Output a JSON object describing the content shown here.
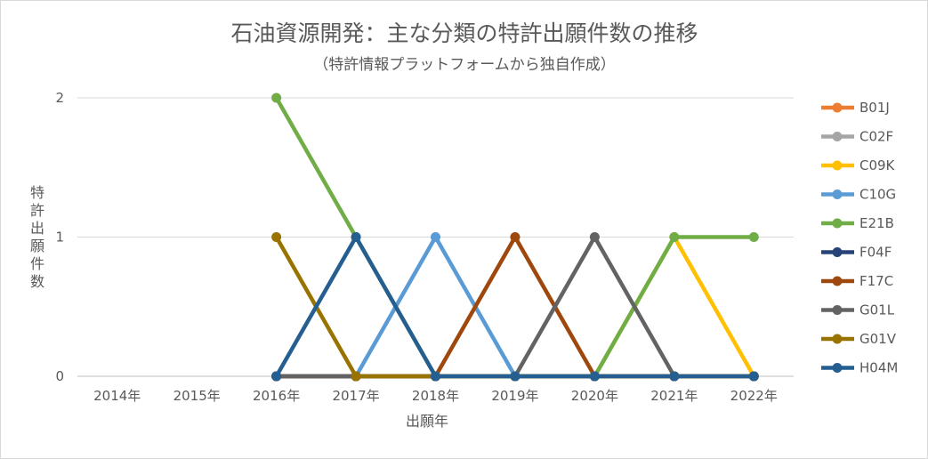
{
  "chart_data": {
    "type": "line",
    "title": "石油資源開発：主な分類の特許出願件数の推移",
    "subtitle": "（特許情報プラットフォームから独自作成）",
    "xlabel": "出願年",
    "ylabel": "特許出願件数",
    "categories": [
      "2014年",
      "2015年",
      "2016年",
      "2017年",
      "2018年",
      "2019年",
      "2020年",
      "2021年",
      "2022年"
    ],
    "ylim": [
      0,
      2
    ],
    "yticks": [
      "0",
      "1",
      "2"
    ],
    "grid": true,
    "legend_position": "right",
    "series": [
      {
        "name": "B01J",
        "color": "#ed7d31",
        "values": [
          null,
          null,
          0,
          0,
          0,
          0,
          0,
          0,
          0
        ]
      },
      {
        "name": "C02F",
        "color": "#a5a5a5",
        "values": [
          null,
          null,
          0,
          0,
          0,
          0,
          0,
          0,
          0
        ]
      },
      {
        "name": "C09K",
        "color": "#ffc000",
        "values": [
          null,
          null,
          0,
          0,
          0,
          0,
          0,
          1,
          0
        ]
      },
      {
        "name": "C10G",
        "color": "#5b9bd5",
        "values": [
          null,
          null,
          0,
          0,
          1,
          0,
          0,
          0,
          0
        ]
      },
      {
        "name": "E21B",
        "color": "#70ad47",
        "values": [
          null,
          null,
          2,
          1,
          0,
          0,
          0,
          1,
          1
        ]
      },
      {
        "name": "F04F",
        "color": "#264478",
        "values": [
          null,
          null,
          0,
          0,
          0,
          0,
          0,
          0,
          0
        ]
      },
      {
        "name": "F17C",
        "color": "#9e480e",
        "values": [
          null,
          null,
          0,
          0,
          0,
          1,
          0,
          0,
          0
        ]
      },
      {
        "name": "G01L",
        "color": "#636363",
        "values": [
          null,
          null,
          0,
          0,
          0,
          0,
          1,
          0,
          0
        ]
      },
      {
        "name": "G01V",
        "color": "#997300",
        "values": [
          null,
          null,
          1,
          0,
          0,
          0,
          0,
          0,
          0
        ]
      },
      {
        "name": "H04M",
        "color": "#255e91",
        "values": [
          null,
          null,
          0,
          1,
          0,
          0,
          0,
          0,
          0
        ]
      }
    ]
  }
}
